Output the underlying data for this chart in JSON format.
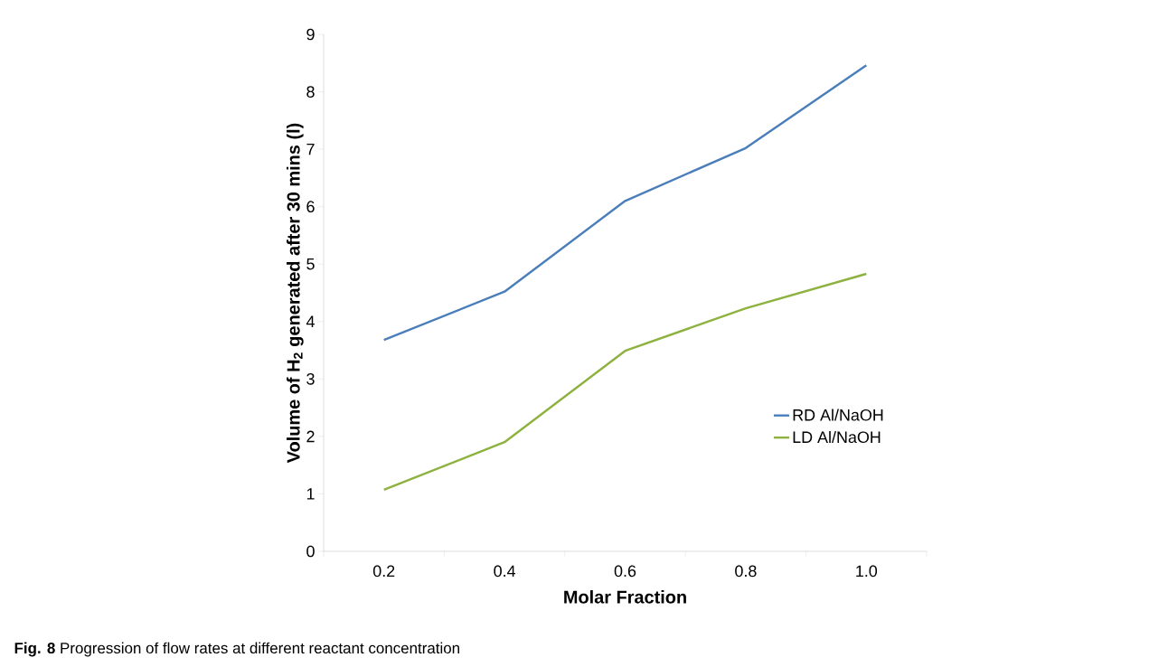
{
  "chart_data": {
    "type": "line",
    "xlabel": "Molar Fraction",
    "ylabel": "Volume of H$_{2}$ generated after 30 mins (l)",
    "categories": [
      "0.2",
      "0.4",
      "0.6",
      "0.8",
      "1.0"
    ],
    "series": [
      {
        "name": "RD Al/NaOH",
        "color": "#4a7ebb",
        "values": [
          3.68,
          4.52,
          6.1,
          7.02,
          8.46
        ]
      },
      {
        "name": "LD Al/NaOH",
        "color": "#8db23f",
        "values": [
          1.07,
          1.9,
          3.49,
          4.23,
          4.83
        ]
      }
    ],
    "ylim": [
      0,
      9
    ],
    "yticks": [
      0,
      1,
      2,
      3,
      4,
      5,
      6,
      7,
      8,
      9
    ],
    "grid": false,
    "legend": "right",
    "marker": "none",
    "line_style": "solid",
    "annotations": [
      "**Fig. 8** Progression of flow rates at different reactant concentration"
    ]
  }
}
